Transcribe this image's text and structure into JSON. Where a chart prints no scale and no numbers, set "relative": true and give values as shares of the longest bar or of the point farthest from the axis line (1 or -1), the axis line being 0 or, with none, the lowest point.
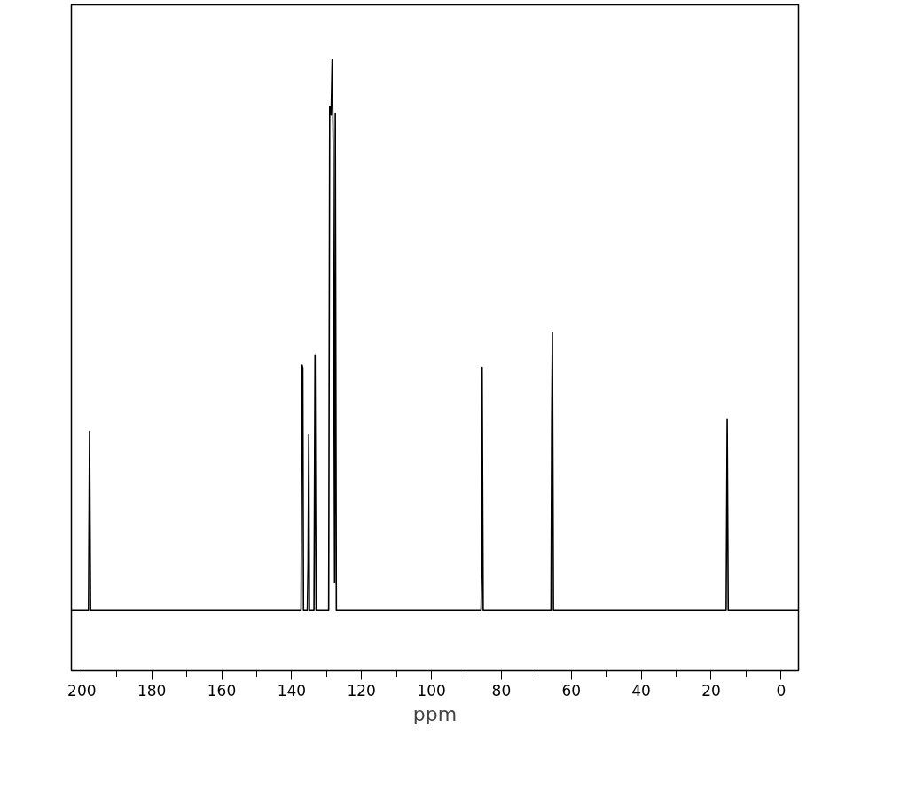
{
  "chart_data": {
    "type": "line",
    "xlabel": "ppm",
    "relative": true,
    "tick_labels": "x",
    "grid": false,
    "xlim": [
      203,
      -5
    ],
    "xticks": [
      200,
      180,
      160,
      140,
      120,
      100,
      80,
      60,
      40,
      20,
      0
    ],
    "series": [
      {
        "color": "#000000",
        "x": [
          203,
          198.1,
          197.8,
          197.5,
          137.3,
          137.0,
          136.8,
          136.6,
          135.5,
          135.3,
          135.1,
          134.9,
          133.6,
          133.3,
          133.0,
          129.4,
          129.1,
          128.7,
          128.4,
          128.1,
          127.7,
          127.5,
          127.2,
          85.8,
          85.6,
          85.5,
          85.2,
          65.8,
          65.6,
          65.4,
          65.1,
          15.7,
          15.4,
          15.1,
          -5
        ],
        "values": [
          0,
          0,
          0.325,
          0,
          0,
          0.445,
          0.44,
          0,
          0,
          0.084,
          0.32,
          0,
          0,
          0.464,
          0,
          0,
          0.916,
          0.9,
          1.0,
          0.85,
          0.05,
          0.902,
          0,
          0,
          0.08,
          0.441,
          0,
          0,
          0.346,
          0.505,
          0,
          0,
          0.348,
          0,
          0
        ]
      }
    ]
  }
}
